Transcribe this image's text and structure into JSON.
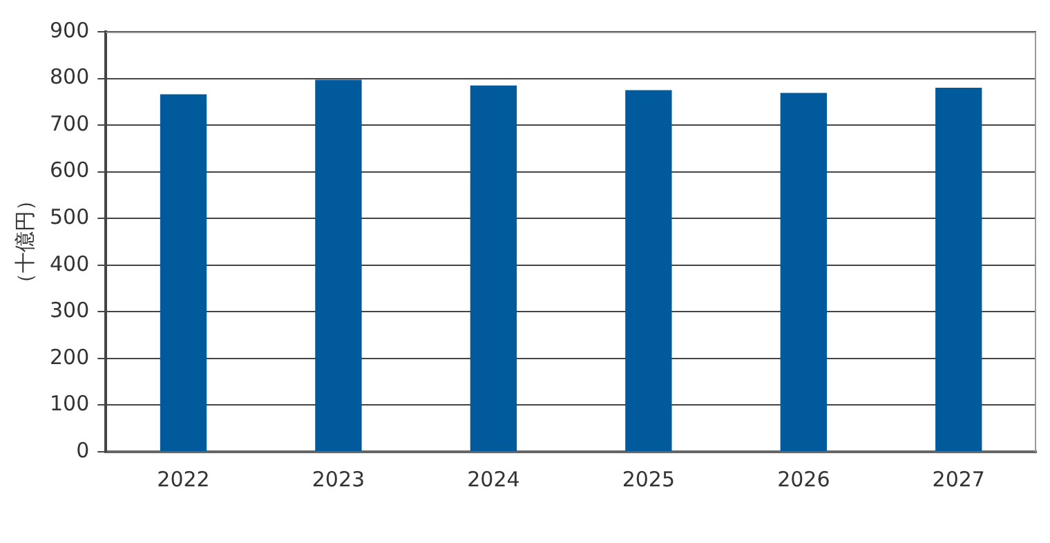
{
  "chart_data": {
    "type": "bar",
    "ylabel": "（十億円）",
    "categories": [
      "2022",
      "2023",
      "2024",
      "2025",
      "2026",
      "2027"
    ],
    "values": [
      766,
      797,
      785,
      775,
      769,
      780
    ],
    "color": "#005a9c",
    "ylim": [
      0,
      900
    ],
    "yticks": [
      0,
      100,
      200,
      300,
      400,
      500,
      600,
      700,
      800,
      900
    ],
    "grid": "y",
    "legend": false
  }
}
